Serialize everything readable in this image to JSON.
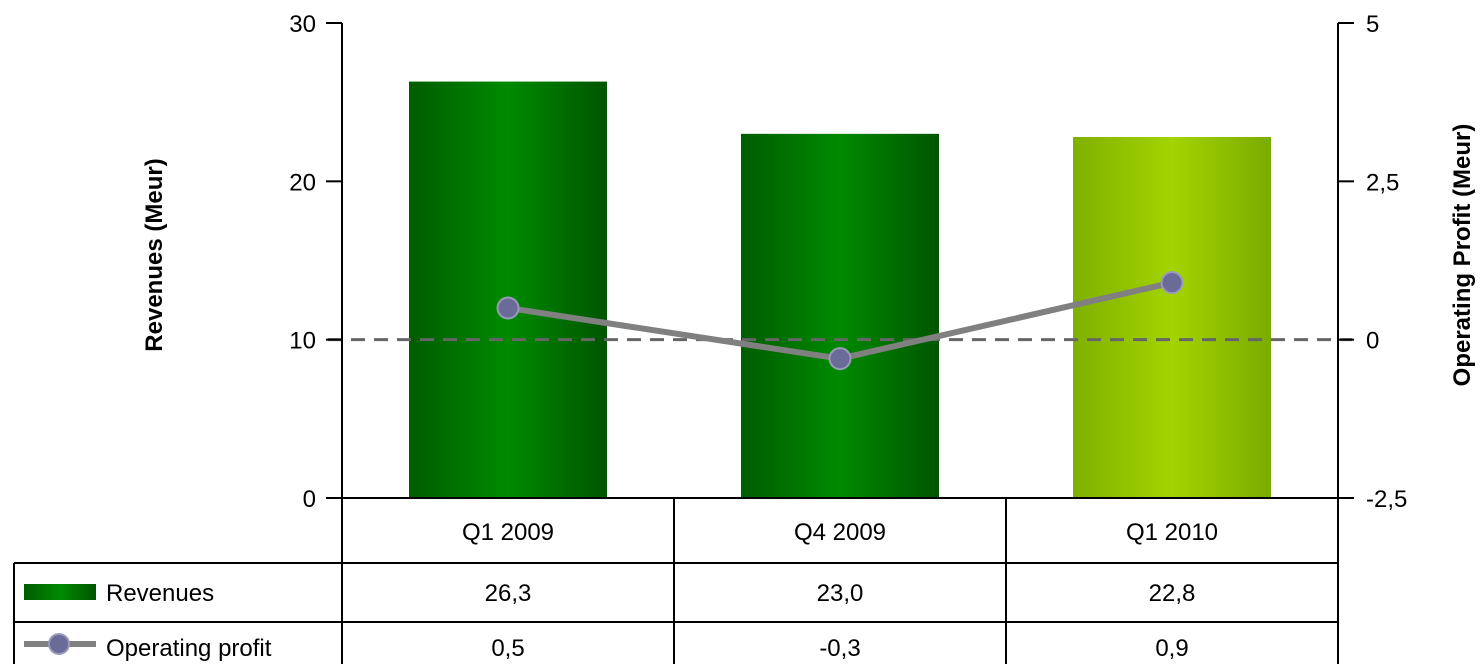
{
  "chart_data": {
    "type": "bar",
    "categories": [
      "Q1 2009",
      "Q4 2009",
      "Q1 2010"
    ],
    "series": [
      {
        "name": "Revenues",
        "type": "bar",
        "axis": "left",
        "values": [
          26.3,
          23.0,
          22.8
        ],
        "labels": [
          "26,3",
          "23,0",
          "22,8"
        ],
        "colors": [
          "#007a00",
          "#007a00",
          "#99cc00"
        ]
      },
      {
        "name": "Operating profit",
        "type": "line",
        "axis": "right",
        "values": [
          0.5,
          -0.3,
          0.9
        ],
        "labels": [
          "0,5",
          "-0,3",
          "0,9"
        ],
        "color": "#808080",
        "marker_color": "#6b6b99"
      }
    ],
    "ylabel": "Revenues (Meur)",
    "y2label": "Operating Profit (Meur)",
    "ylim": [
      0,
      30
    ],
    "y2lim": [
      -2.5,
      5
    ],
    "yticks": [
      "0",
      "10",
      "20",
      "30"
    ],
    "y2ticks": [
      "-2,5",
      "0",
      "2,5",
      "5"
    ],
    "reference_line": {
      "axis": "right",
      "value": 0,
      "style": "dashed",
      "color": "#666666"
    },
    "grid": false,
    "legend": "data-table-below"
  }
}
